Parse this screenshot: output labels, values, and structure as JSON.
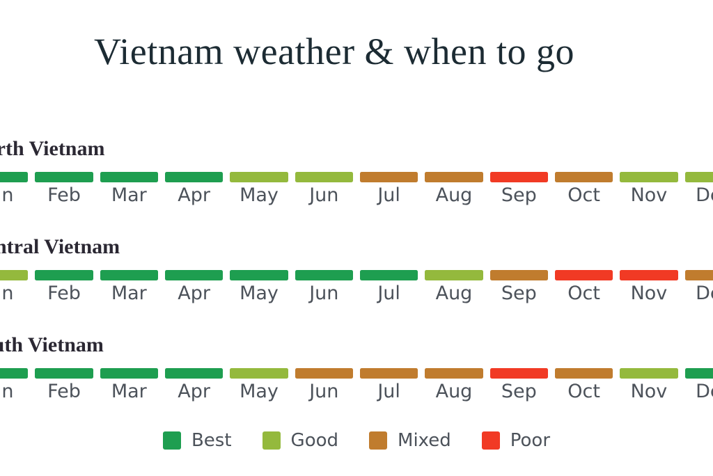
{
  "title": "Vietnam weather & when to go",
  "chart_data": {
    "type": "heatmap",
    "title": "Vietnam weather & when to go",
    "categories": [
      "Jan",
      "Feb",
      "Mar",
      "Apr",
      "May",
      "Jun",
      "Jul",
      "Aug",
      "Sep",
      "Oct",
      "Nov",
      "Dec"
    ],
    "series": [
      {
        "name": "North Vietnam",
        "values": [
          "Best",
          "Best",
          "Best",
          "Best",
          "Good",
          "Good",
          "Mixed",
          "Mixed",
          "Poor",
          "Mixed",
          "Good",
          "Good"
        ]
      },
      {
        "name": "Central Vietnam",
        "values": [
          "Good",
          "Best",
          "Best",
          "Best",
          "Best",
          "Best",
          "Best",
          "Good",
          "Mixed",
          "Poor",
          "Poor",
          "Mixed"
        ]
      },
      {
        "name": "South Vietnam",
        "values": [
          "Best",
          "Best",
          "Best",
          "Best",
          "Good",
          "Mixed",
          "Mixed",
          "Mixed",
          "Poor",
          "Mixed",
          "Good",
          "Best"
        ]
      }
    ],
    "legend": [
      "Best",
      "Good",
      "Mixed",
      "Poor"
    ],
    "legend_position": "bottom",
    "colors": {
      "Best": "#1e9e50",
      "Good": "#94b93d",
      "Mixed": "#c07c2e",
      "Poor": "#f13a24"
    },
    "text_colors": {
      "title": "#1c2b33",
      "region_heading": "#2b2833",
      "month_label": "#4c525a"
    }
  }
}
